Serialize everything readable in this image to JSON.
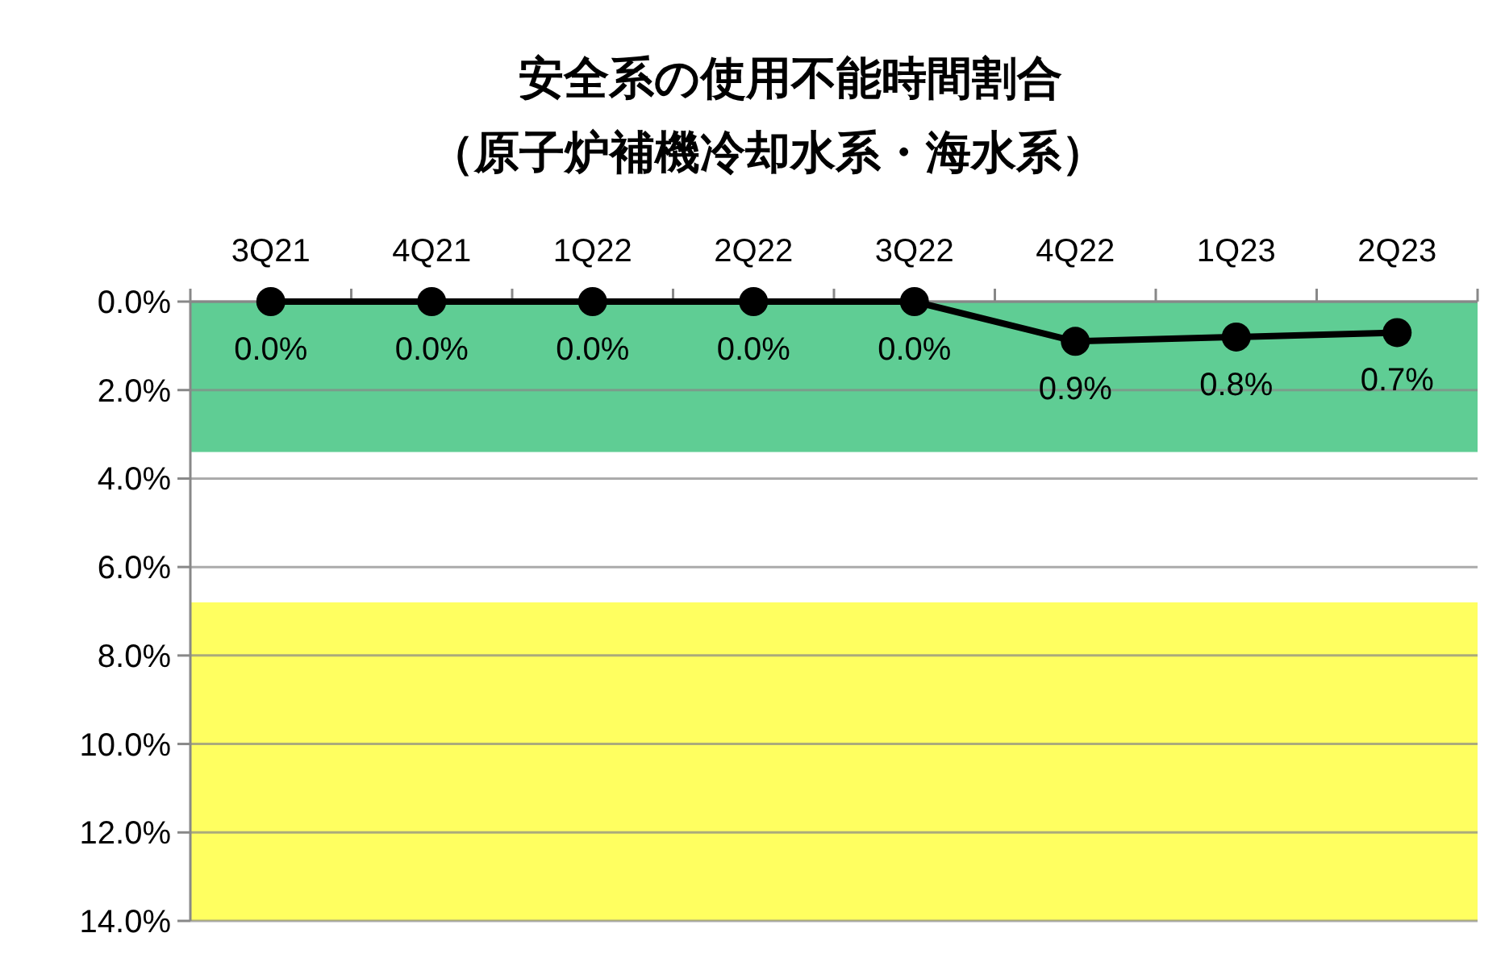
{
  "chart_data": {
    "type": "line",
    "title": "安全系の使用不能時間割合",
    "subtitle": "（原子炉補機冷却水系・海水系）",
    "categories": [
      "3Q21",
      "4Q21",
      "1Q22",
      "2Q22",
      "3Q22",
      "4Q22",
      "1Q23",
      "2Q23"
    ],
    "series": [
      {
        "color": "#000000",
        "values": [
          0,
          0,
          0,
          0,
          0,
          0.9,
          0.8,
          0.7
        ],
        "value_labels": [
          "0.0%",
          "0.0%",
          "0.0%",
          "0.0%",
          "0.0%",
          "0.9%",
          "0.8%",
          "0.7%"
        ]
      }
    ],
    "ylim": [
      14,
      0
    ],
    "yticks": [
      {
        "value": 0,
        "label": "0.0%"
      },
      {
        "value": 2,
        "label": "2.0%"
      },
      {
        "value": 4,
        "label": "4.0%"
      },
      {
        "value": 6,
        "label": "6.0%"
      },
      {
        "value": 8,
        "label": "8.0%"
      },
      {
        "value": 10,
        "label": "10.0%"
      },
      {
        "value": 12,
        "label": "12.0%"
      },
      {
        "value": 14,
        "label": "14.0%"
      }
    ],
    "bands": [
      {
        "axis": "y",
        "from": 0,
        "to": 3.4,
        "color": "#5fcd94"
      },
      {
        "axis": "y",
        "from": 6.8,
        "to": 14,
        "color": "#ffff60"
      }
    ],
    "grid": "y",
    "marker": "circle",
    "line_style": "solid"
  }
}
